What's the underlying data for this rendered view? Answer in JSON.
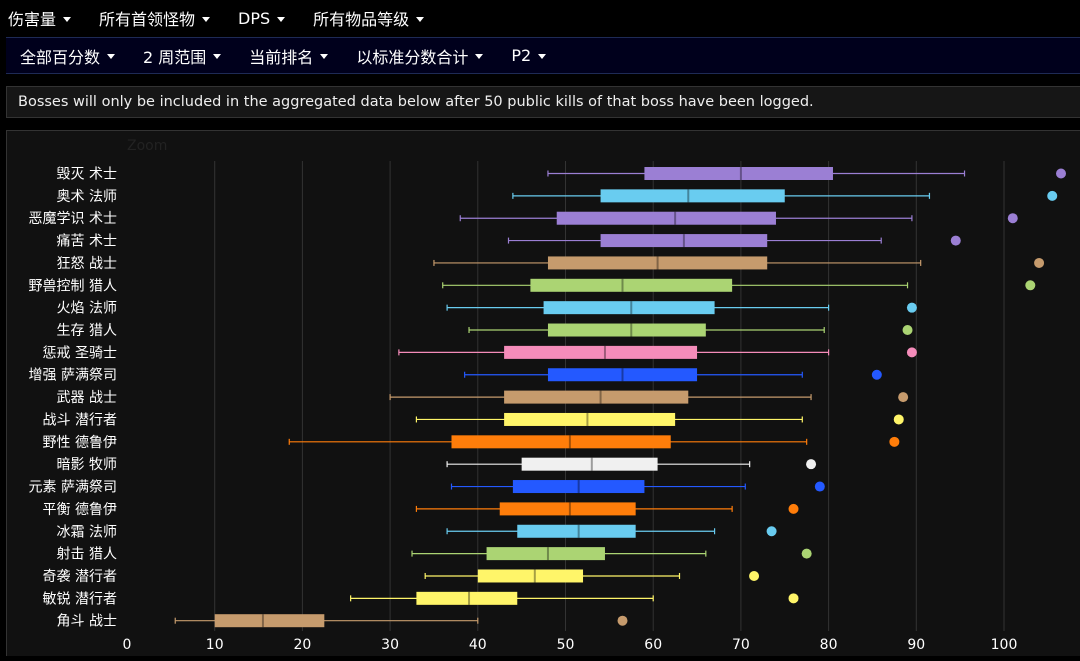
{
  "top_menu": [
    {
      "label": "伤害量"
    },
    {
      "label": "所有首领怪物"
    },
    {
      "label": "DPS"
    },
    {
      "label": "所有物品等级"
    }
  ],
  "sub_menu": [
    {
      "label": "全部百分数"
    },
    {
      "label": "2 周范围"
    },
    {
      "label": "当前排名"
    },
    {
      "label": "以标准分数合计"
    },
    {
      "label": "P2"
    }
  ],
  "notice": "Bosses will only be included in the aggregated data below after 50 public kills of that boss have been logged.",
  "zoom_label": "Zoom",
  "chart_data": {
    "type": "box",
    "xlim": [
      0,
      105
    ],
    "x_ticks": [
      "0",
      "10",
      "20",
      "30",
      "40",
      "50",
      "60",
      "70",
      "80",
      "90",
      "100"
    ],
    "grid": true,
    "categories": [
      {
        "label": "毁灭 术士",
        "color": "#9b7fd4",
        "min": 48,
        "q1": 59,
        "median": 70,
        "q3": 80.5,
        "max": 95.5,
        "outlier": 106.5
      },
      {
        "label": "奥术 法师",
        "color": "#69ccf0",
        "min": 44,
        "q1": 54,
        "median": 64,
        "q3": 75,
        "max": 91.5,
        "outlier": 105.5
      },
      {
        "label": "恶魔学识 术士",
        "color": "#9b7fd4",
        "min": 38,
        "q1": 49,
        "median": 62.5,
        "q3": 74,
        "max": 89.5,
        "outlier": 101
      },
      {
        "label": "痛苦 术士",
        "color": "#9b7fd4",
        "min": 43.5,
        "q1": 54,
        "median": 63.5,
        "q3": 73,
        "max": 86,
        "outlier": 94.5
      },
      {
        "label": "狂怒 战士",
        "color": "#c69b6d",
        "min": 35,
        "q1": 48,
        "median": 60.5,
        "q3": 73,
        "max": 90.5,
        "outlier": 104
      },
      {
        "label": "野兽控制 猎人",
        "color": "#abd473",
        "min": 36,
        "q1": 46,
        "median": 56.5,
        "q3": 69,
        "max": 89,
        "outlier": 103
      },
      {
        "label": "火焰 法师",
        "color": "#69ccf0",
        "min": 36.5,
        "q1": 47.5,
        "median": 57.5,
        "q3": 67,
        "max": 80,
        "outlier": 89.5
      },
      {
        "label": "生存 猎人",
        "color": "#abd473",
        "min": 39,
        "q1": 48,
        "median": 57.5,
        "q3": 66,
        "max": 79.5,
        "outlier": 89
      },
      {
        "label": "惩戒 圣骑士",
        "color": "#f58cba",
        "min": 31,
        "q1": 43,
        "median": 54.5,
        "q3": 65,
        "max": 80,
        "outlier": 89.5
      },
      {
        "label": "增强 萨满祭司",
        "color": "#2459ff",
        "min": 38.5,
        "q1": 48,
        "median": 56.5,
        "q3": 65,
        "max": 77,
        "outlier": 85.5
      },
      {
        "label": "武器 战士",
        "color": "#c69b6d",
        "min": 30,
        "q1": 43,
        "median": 54,
        "q3": 64,
        "max": 78,
        "outlier": 88.5
      },
      {
        "label": "战斗 潜行者",
        "color": "#fff569",
        "min": 33,
        "q1": 43,
        "median": 52.5,
        "q3": 62.5,
        "max": 77,
        "outlier": 88
      },
      {
        "label": "野性 德鲁伊",
        "color": "#ff7d0a",
        "min": 18.5,
        "q1": 37,
        "median": 50.5,
        "q3": 62,
        "max": 77.5,
        "outlier": 87.5
      },
      {
        "label": "暗影 牧师",
        "color": "#f0f0f0",
        "min": 36.5,
        "q1": 45,
        "median": 53,
        "q3": 60.5,
        "max": 71,
        "outlier": 78
      },
      {
        "label": "元素 萨满祭司",
        "color": "#2459ff",
        "min": 37,
        "q1": 44,
        "median": 51.5,
        "q3": 59,
        "max": 70.5,
        "outlier": 79
      },
      {
        "label": "平衡 德鲁伊",
        "color": "#ff7d0a",
        "min": 33,
        "q1": 42.5,
        "median": 50.5,
        "q3": 58,
        "max": 69,
        "outlier": 76
      },
      {
        "label": "冰霜 法师",
        "color": "#69ccf0",
        "min": 36.5,
        "q1": 44.5,
        "median": 51.5,
        "q3": 58,
        "max": 67,
        "outlier": 73.5
      },
      {
        "label": "射击 猎人",
        "color": "#abd473",
        "min": 32.5,
        "q1": 41,
        "median": 48,
        "q3": 54.5,
        "max": 66,
        "outlier": 77.5
      },
      {
        "label": "奇袭 潜行者",
        "color": "#fff569",
        "min": 34,
        "q1": 40,
        "median": 46.5,
        "q3": 52,
        "max": 63,
        "outlier": 71.5
      },
      {
        "label": "敏锐 潜行者",
        "color": "#fff569",
        "min": 25.5,
        "q1": 33,
        "median": 39,
        "q3": 44.5,
        "max": 60,
        "outlier": 76
      },
      {
        "label": "角斗 战士",
        "color": "#c69b6d",
        "min": 5.5,
        "q1": 10,
        "median": 15.5,
        "q3": 22.5,
        "max": 40,
        "outlier": 56.5
      }
    ]
  }
}
